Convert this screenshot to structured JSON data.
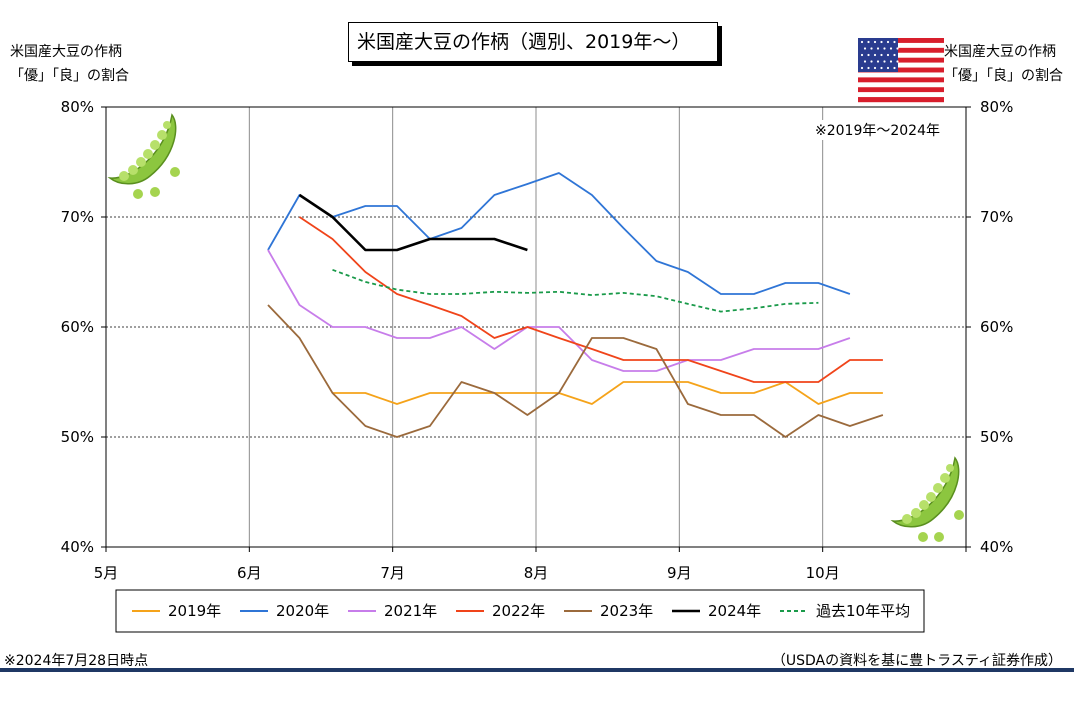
{
  "chart_data": {
    "type": "line",
    "title": "米国産大豆の作柄（週別、2019年～）",
    "ylabel_left": [
      "米国産大豆の作柄",
      "「優」「良」の割合"
    ],
    "ylabel_right": [
      "米国産大豆の作柄",
      "「優」「良」の割合"
    ],
    "yticks": [
      "40%",
      "50%",
      "60%",
      "70%",
      "80%"
    ],
    "ytick_values": [
      40,
      50,
      60,
      70,
      80
    ],
    "ylim": [
      40,
      80
    ],
    "xticks": [
      "5月",
      "6月",
      "7月",
      "8月",
      "9月",
      "10月"
    ],
    "xtick_values": [
      0,
      1,
      2,
      3,
      4,
      5
    ],
    "xlim": [
      0,
      6
    ],
    "grid": "horizontal dotted at 50/60/70%, vertical at month starts",
    "legend_position": "bottom",
    "series": [
      {
        "name": "2019年",
        "color": "#f5a31a",
        "dash": false,
        "x": [
          1.58,
          1.81,
          2.03,
          2.26,
          2.48,
          2.71,
          2.94,
          3.16,
          3.39,
          3.61,
          3.84,
          4.06,
          4.29,
          4.52,
          4.74,
          4.97,
          5.19,
          5.42
        ],
        "y": [
          54,
          54,
          53,
          54,
          54,
          54,
          54,
          54,
          53,
          55,
          55,
          55,
          54,
          54,
          55,
          53,
          54,
          54
        ]
      },
      {
        "name": "2020年",
        "color": "#2f75d6",
        "dash": false,
        "x": [
          1.13,
          1.35,
          1.58,
          1.81,
          2.03,
          2.26,
          2.48,
          2.71,
          2.94,
          3.16,
          3.39,
          3.61,
          3.84,
          4.06,
          4.29,
          4.52,
          4.74,
          4.97,
          5.19
        ],
        "y": [
          67,
          72,
          70,
          71,
          71,
          68,
          69,
          72,
          73,
          74,
          72,
          69,
          66,
          65,
          63,
          63,
          64,
          64,
          63
        ]
      },
      {
        "name": "2021年",
        "color": "#c77dea",
        "dash": false,
        "x": [
          1.13,
          1.35,
          1.58,
          1.81,
          2.03,
          2.26,
          2.48,
          2.71,
          2.94,
          3.16,
          3.39,
          3.61,
          3.84,
          4.06,
          4.29,
          4.52,
          4.74,
          4.97,
          5.19
        ],
        "y": [
          67,
          62,
          60,
          60,
          59,
          59,
          60,
          58,
          60,
          60,
          57,
          56,
          56,
          57,
          57,
          58,
          58,
          58,
          59
        ]
      },
      {
        "name": "2022年",
        "color": "#f0441a",
        "dash": false,
        "x": [
          1.35,
          1.58,
          1.81,
          2.03,
          2.26,
          2.48,
          2.71,
          2.94,
          3.16,
          3.39,
          3.61,
          3.84,
          4.06,
          4.29,
          4.52,
          4.74,
          4.97,
          5.19,
          5.42
        ],
        "y": [
          70,
          68,
          65,
          63,
          62,
          61,
          59,
          60,
          59,
          58,
          57,
          57,
          57,
          56,
          55,
          55,
          55,
          57,
          57
        ]
      },
      {
        "name": "2023年",
        "color": "#9b6a3c",
        "dash": false,
        "x": [
          1.13,
          1.35,
          1.58,
          1.81,
          2.03,
          2.26,
          2.48,
          2.71,
          2.94,
          3.16,
          3.39,
          3.61,
          3.84,
          4.06,
          4.29,
          4.52,
          4.74,
          4.97,
          5.19,
          5.42
        ],
        "y": [
          62,
          59,
          54,
          51,
          50,
          51,
          55,
          54,
          52,
          54,
          59,
          59,
          58,
          53,
          52,
          52,
          50,
          52,
          51,
          52
        ]
      },
      {
        "name": "2024年",
        "color": "#000000",
        "dash": false,
        "x": [
          1.35,
          1.58,
          1.81,
          2.03,
          2.26,
          2.48,
          2.71,
          2.94
        ],
        "y": [
          72,
          70,
          67,
          67,
          68,
          68,
          68,
          67
        ]
      },
      {
        "name": "過去10年平均",
        "color": "#1a9a4a",
        "dash": true,
        "x": [
          1.58,
          1.81,
          2.03,
          2.26,
          2.48,
          2.71,
          2.94,
          3.16,
          3.39,
          3.61,
          3.84,
          4.06,
          4.29,
          4.52,
          4.74,
          4.97
        ],
        "y": [
          65.2,
          64.1,
          63.4,
          63.0,
          63.0,
          63.2,
          63.1,
          63.2,
          62.9,
          63.1,
          62.8,
          62.1,
          61.4,
          61.7,
          62.1,
          62.2
        ]
      }
    ]
  },
  "notes": {
    "top_right": "※2019年～2024年",
    "bottom_left": "※2024年7月28日時点",
    "bottom_right": "（USDAの資料を基に豊トラスティ証券作成）"
  },
  "colors": {
    "flag_red": "#d81e2c",
    "flag_blue": "#2a3c8f",
    "pea_green": "#8cc63f",
    "rule_navy": "#1f3864"
  },
  "icons": [
    "us-flag-icon",
    "pea-pod-icon"
  ]
}
